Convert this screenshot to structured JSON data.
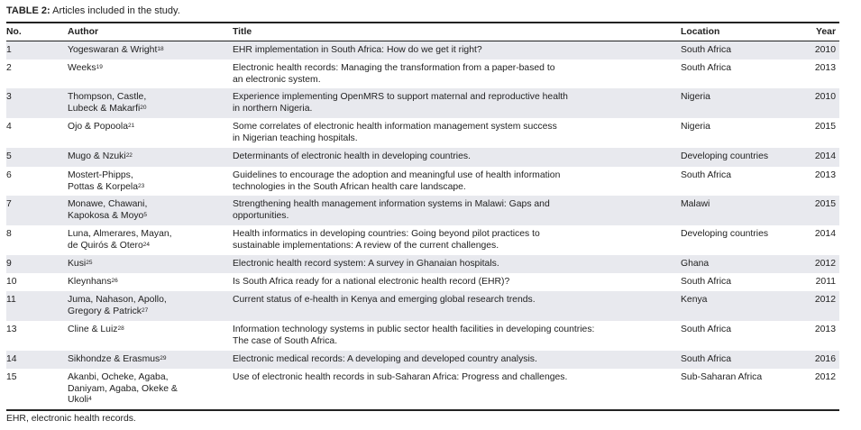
{
  "caption": {
    "label": "TABLE 2:",
    "text": " Articles included in the study."
  },
  "headers": {
    "no": "No.",
    "author": "Author",
    "title": "Title",
    "location": "Location",
    "year": "Year"
  },
  "rows": [
    {
      "no": "1",
      "author": [
        "Yogeswaran & Wright"
      ],
      "sup": "18",
      "title": [
        "EHR implementation in South Africa: How do we get it right?"
      ],
      "location": "South Africa",
      "year": "2010"
    },
    {
      "no": "2",
      "author": [
        "Weeks"
      ],
      "sup": "19",
      "title": [
        "Electronic health records: Managing the transformation from a paper-based to",
        "an electronic system."
      ],
      "location": "South Africa",
      "year": "2013"
    },
    {
      "no": "3",
      "author": [
        "Thompson, Castle,",
        "Lubeck & Makarfi"
      ],
      "sup": "20",
      "title": [
        "Experience implementing OpenMRS to support maternal and reproductive health",
        "in northern Nigeria."
      ],
      "location": "Nigeria",
      "year": "2010"
    },
    {
      "no": "4",
      "author": [
        "Ojo & Popoola"
      ],
      "sup": "21",
      "title": [
        "Some correlates of electronic health information management system success",
        "in Nigerian teaching hospitals."
      ],
      "location": "Nigeria",
      "year": "2015"
    },
    {
      "no": "5",
      "author": [
        "Mugo & Nzuki"
      ],
      "sup": "22",
      "title": [
        "Determinants of electronic health in developing countries."
      ],
      "location": "Developing countries",
      "year": "2014"
    },
    {
      "no": "6",
      "author": [
        "Mostert-Phipps,",
        "Pottas & Korpela"
      ],
      "sup": "23",
      "title": [
        "Guidelines to encourage the adoption and meaningful use of health information",
        "technologies in the South African health care landscape."
      ],
      "location": "South Africa",
      "year": "2013"
    },
    {
      "no": "7",
      "author": [
        "Monawe, Chawani,",
        "Kapokosa & Moyo"
      ],
      "sup": "5",
      "title": [
        "Strengthening health management information systems in Malawi: Gaps and",
        "opportunities."
      ],
      "location": "Malawi",
      "year": "2015"
    },
    {
      "no": "8",
      "author": [
        "Luna, Almerares, Mayan,",
        "de Quirós & Otero"
      ],
      "sup": "24",
      "title": [
        "Health informatics in developing countries: Going beyond pilot practices to",
        "sustainable implementations: A review of the current challenges."
      ],
      "location": "Developing countries",
      "year": "2014"
    },
    {
      "no": "9",
      "author": [
        "Kusi"
      ],
      "sup": "25",
      "title": [
        "Electronic health record system: A survey in Ghanaian hospitals."
      ],
      "location": "Ghana",
      "year": "2012"
    },
    {
      "no": "10",
      "author": [
        "Kleynhans"
      ],
      "sup": "26",
      "title": [
        "Is South Africa ready for a national electronic health record (EHR)?"
      ],
      "location": "South Africa",
      "year": "2011"
    },
    {
      "no": "11",
      "author": [
        "Juma, Nahason, Apollo,",
        "Gregory & Patrick"
      ],
      "sup": "27",
      "title": [
        "Current status of e-health in Kenya and emerging global research trends."
      ],
      "location": "Kenya",
      "year": "2012"
    },
    {
      "no": "13",
      "author": [
        "Cline & Luiz"
      ],
      "sup": "28",
      "title": [
        "Information technology systems in public sector health facilities in developing countries:",
        "The case of South Africa."
      ],
      "location": "South Africa",
      "year": "2013"
    },
    {
      "no": "14",
      "author": [
        "Sikhondze & Erasmus"
      ],
      "sup": "29",
      "title": [
        "Electronic medical records: A developing and developed country analysis."
      ],
      "location": "South Africa",
      "year": "2016"
    },
    {
      "no": "15",
      "author": [
        "Akanbi, Ocheke, Agaba,",
        "Daniyam, Agaba, Okeke &",
        "Ukoli"
      ],
      "sup": "4",
      "title": [
        "Use of electronic health records in sub-Saharan Africa: Progress and challenges."
      ],
      "location": "Sub-Saharan Africa",
      "year": "2012"
    }
  ],
  "footnote": "EHR, electronic health records.",
  "colors": {
    "stripe": "#e8e9ee",
    "rule": "#222222"
  }
}
